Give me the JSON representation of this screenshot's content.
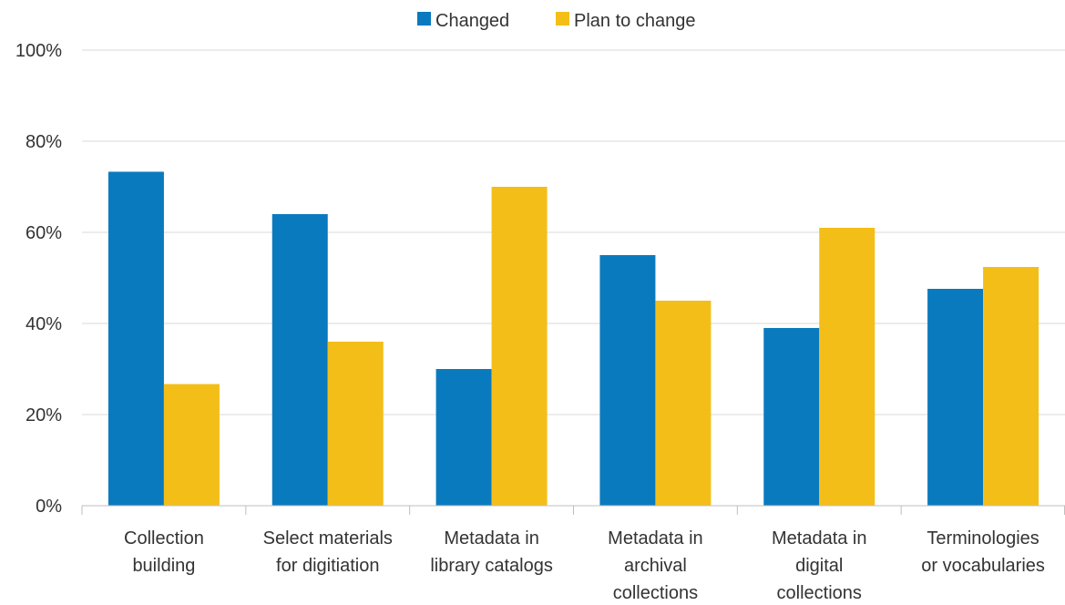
{
  "chart_data": {
    "type": "bar",
    "categories": [
      [
        "Collection",
        "building"
      ],
      [
        "Select materials",
        "for digitiation"
      ],
      [
        "Metadata in",
        "library catalogs"
      ],
      [
        "Metadata in",
        "archival",
        "collections"
      ],
      [
        "Metadata in",
        "digital",
        "collections"
      ],
      [
        "Terminologies",
        "or vocabularies"
      ]
    ],
    "series": [
      {
        "name": "Changed",
        "color": "#0a7abf",
        "values": [
          73.3,
          64,
          30,
          55,
          39,
          47.6
        ]
      },
      {
        "name": "Plan to change",
        "color": "#f4be19",
        "values": [
          26.7,
          36,
          70,
          45,
          61,
          52.4
        ]
      }
    ],
    "yticks": [
      "0%",
      "20%",
      "40%",
      "60%",
      "80%",
      "100%"
    ],
    "ylim": [
      0,
      100
    ],
    "grid": true,
    "legend_position": "top-center",
    "gridline_color": "#d9d9d9",
    "axis_color": "#bfbfbf"
  }
}
